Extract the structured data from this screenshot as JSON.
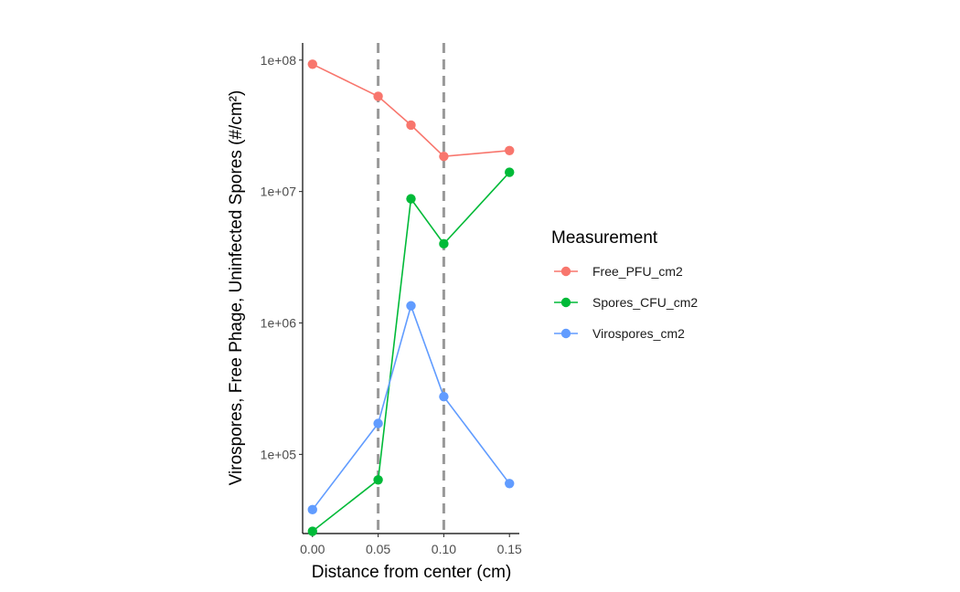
{
  "chart_data": {
    "type": "line",
    "xlabel": "Distance from center (cm)",
    "ylabel": "Virospores, Free Phage, Uninfected Spores (#/cm²)",
    "x_ticks": [
      0.0,
      0.05,
      0.1,
      0.15
    ],
    "x_tick_labels": [
      "0.00",
      "0.05",
      "0.10",
      "0.15"
    ],
    "xlim": [
      -0.0075,
      0.1575
    ],
    "y_scale": "log10",
    "y_ticks": [
      100000,
      1000000,
      10000000,
      100000000
    ],
    "y_tick_labels": [
      "1e+05",
      "1e+06",
      "1e+07",
      "1e+08"
    ],
    "ylim": [
      25000,
      135000000
    ],
    "vlines": [
      0.05,
      0.1
    ],
    "vline_color": "#999999",
    "grid": false,
    "legend": {
      "title": "Measurement",
      "position": "right"
    },
    "x": [
      0.0,
      0.05,
      0.075,
      0.1,
      0.15
    ],
    "series": [
      {
        "name": "Free_PFU_cm2",
        "color": "#F8766D",
        "values": [
          93000000,
          53000000,
          32000000,
          18500000,
          20500000
        ]
      },
      {
        "name": "Spores_CFU_cm2",
        "color": "#00BA38",
        "values": [
          26000,
          64000,
          8800000,
          4000000,
          14000000
        ]
      },
      {
        "name": "Virospores_cm2",
        "color": "#619CFF",
        "values": [
          38000,
          172000,
          1350000,
          275000,
          60000
        ]
      }
    ]
  }
}
